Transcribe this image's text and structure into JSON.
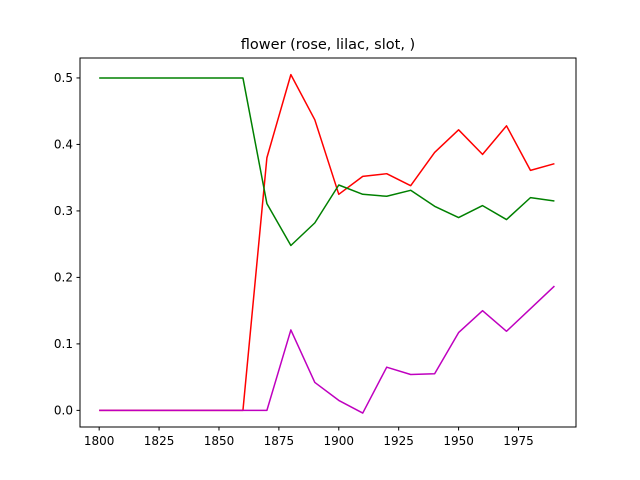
{
  "chart_data": {
    "type": "line",
    "title": "flower (rose, lilac, slot, )",
    "xlabel": "",
    "ylabel": "",
    "xlim": [
      1792,
      1999
    ],
    "ylim": [
      -0.025,
      0.53
    ],
    "xticks": [
      1800,
      1825,
      1850,
      1875,
      1900,
      1925,
      1950,
      1975
    ],
    "yticks": [
      0.0,
      0.1,
      0.2,
      0.3,
      0.4,
      0.5
    ],
    "ytick_labels": [
      "0.0",
      "0.1",
      "0.2",
      "0.3",
      "0.4",
      "0.5"
    ],
    "grid": false,
    "legend": false,
    "x": [
      1800,
      1810,
      1820,
      1830,
      1840,
      1850,
      1860,
      1870,
      1880,
      1890,
      1900,
      1910,
      1920,
      1930,
      1940,
      1950,
      1960,
      1970,
      1980,
      1990
    ],
    "series": [
      {
        "color": "#ff0000",
        "values": [
          0.0,
          0.0,
          0.0,
          0.0,
          0.0,
          0.0,
          0.0,
          0.38,
          0.505,
          0.437,
          0.325,
          0.352,
          0.356,
          0.338,
          0.388,
          0.422,
          0.385,
          0.428,
          0.361,
          0.371
        ]
      },
      {
        "color": "#008000",
        "values": [
          0.5,
          0.5,
          0.5,
          0.5,
          0.5,
          0.5,
          0.5,
          0.311,
          0.248,
          0.282,
          0.339,
          0.325,
          0.322,
          0.331,
          0.307,
          0.29,
          0.308,
          0.287,
          0.32,
          0.315
        ]
      },
      {
        "color": "#bf00bf",
        "values": [
          0.0,
          0.0,
          0.0,
          0.0,
          0.0,
          0.0,
          0.0,
          0.0,
          0.121,
          0.042,
          0.015,
          -0.004,
          0.065,
          0.054,
          0.055,
          0.117,
          0.15,
          0.119,
          0.153,
          0.187
        ]
      }
    ]
  }
}
